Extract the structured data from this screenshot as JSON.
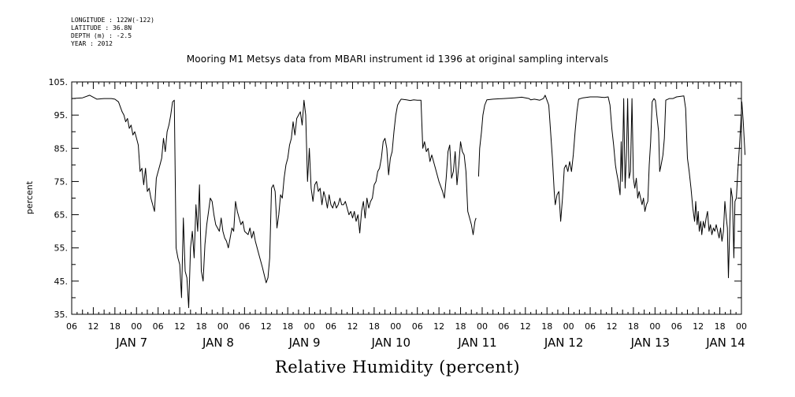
{
  "meta": {
    "longitude": "LONGITUDE : 122W(-122)",
    "latitude": "LATITUDE : 36.8N",
    "depth": "DEPTH (m) : -2.5",
    "year": "YEAR : 2012"
  },
  "chart_data": {
    "type": "line",
    "title": "Mooring M1 Metsys data from MBARI instrument id 1396 at original sampling intervals",
    "xlabel": "Relative Humidity (percent)",
    "ylabel": "percent",
    "xlim_hours": [
      0,
      186
    ],
    "ylim": [
      35,
      105
    ],
    "y_ticks": [
      "35.",
      "45.",
      "55.",
      "65.",
      "75.",
      "85.",
      "95.",
      "105."
    ],
    "x_tick_labels": [
      "06",
      "12",
      "18",
      "00",
      "06",
      "12",
      "18",
      "00",
      "06",
      "12",
      "18",
      "00",
      "06",
      "12",
      "18",
      "00",
      "06",
      "12",
      "18",
      "00",
      "06",
      "12",
      "18",
      "00",
      "06",
      "12",
      "18",
      "00",
      "06",
      "12",
      "18",
      "00"
    ],
    "day_labels": [
      "JAN  7",
      "JAN  8",
      "JAN  9",
      "JAN 10",
      "JAN 11",
      "JAN 12",
      "JAN 13",
      "JAN 14"
    ],
    "segments": [
      [
        [
          0,
          100
        ],
        [
          3,
          100.2
        ],
        [
          5,
          101
        ],
        [
          6,
          100.4
        ],
        [
          7,
          99.8
        ],
        [
          9,
          100
        ],
        [
          11,
          100
        ],
        [
          12,
          99.8
        ],
        [
          13,
          99
        ],
        [
          14,
          96
        ],
        [
          14.5,
          95
        ],
        [
          15,
          93
        ],
        [
          15.5,
          94
        ],
        [
          16,
          91
        ],
        [
          16.5,
          92
        ],
        [
          17,
          89
        ],
        [
          17.5,
          90
        ],
        [
          18,
          88
        ],
        [
          18.5,
          86
        ],
        [
          19,
          78
        ],
        [
          19.5,
          79
        ],
        [
          20,
          74
        ],
        [
          20.5,
          79
        ],
        [
          21,
          72
        ],
        [
          21.5,
          73
        ],
        [
          22,
          70
        ],
        [
          22.5,
          68
        ],
        [
          23,
          66
        ],
        [
          23.5,
          76
        ],
        [
          24,
          78
        ],
        [
          24.5,
          80
        ],
        [
          25,
          82
        ],
        [
          25.5,
          88
        ],
        [
          26,
          84
        ],
        [
          26.5,
          90
        ],
        [
          27,
          92
        ],
        [
          27.5,
          95
        ],
        [
          28,
          99
        ],
        [
          28.5,
          99.5
        ],
        [
          29,
          55
        ],
        [
          29.5,
          52
        ],
        [
          30,
          50
        ],
        [
          30.5,
          40
        ],
        [
          31,
          64
        ],
        [
          31.5,
          48
        ],
        [
          32,
          46
        ],
        [
          32.5,
          37
        ],
        [
          33,
          55
        ],
        [
          33.5,
          60
        ],
        [
          34,
          52
        ],
        [
          34.5,
          68
        ],
        [
          35,
          60
        ],
        [
          35.5,
          74
        ],
        [
          36,
          48
        ],
        [
          36.5,
          45
        ],
        [
          37,
          56
        ],
        [
          37.5,
          62
        ],
        [
          38,
          66
        ],
        [
          38.5,
          70
        ],
        [
          39,
          69
        ],
        [
          39.5,
          65
        ],
        [
          40,
          62
        ],
        [
          41,
          60
        ],
        [
          41.5,
          64
        ],
        [
          42,
          60
        ],
        [
          42.5,
          58
        ],
        [
          43,
          57
        ],
        [
          43.5,
          55
        ],
        [
          44,
          58
        ],
        [
          44.5,
          61
        ],
        [
          45,
          60
        ],
        [
          45.5,
          69
        ],
        [
          46,
          66
        ],
        [
          46.5,
          64
        ],
        [
          47,
          62
        ],
        [
          47.5,
          63
        ],
        [
          48,
          60
        ],
        [
          49,
          59
        ],
        [
          49.5,
          61
        ],
        [
          50,
          58
        ],
        [
          50.5,
          60
        ],
        [
          51,
          57
        ],
        [
          52,
          53
        ],
        [
          53,
          49
        ],
        [
          54,
          44.5
        ],
        [
          54.5,
          46
        ],
        [
          55,
          52
        ],
        [
          55.5,
          73
        ],
        [
          56,
          74
        ],
        [
          56.5,
          72
        ],
        [
          57,
          61
        ],
        [
          57.5,
          65
        ],
        [
          58,
          71
        ],
        [
          58.5,
          70
        ],
        [
          59,
          76
        ],
        [
          59.5,
          80
        ],
        [
          60,
          82
        ],
        [
          60.5,
          86
        ],
        [
          61,
          88
        ],
        [
          61.5,
          93
        ],
        [
          62,
          89
        ],
        [
          62.5,
          94
        ],
        [
          63,
          95
        ],
        [
          63.5,
          96
        ],
        [
          64,
          92
        ],
        [
          64.5,
          99.5
        ],
        [
          65,
          95
        ],
        [
          65.5,
          75
        ],
        [
          66,
          85
        ],
        [
          66.5,
          73
        ],
        [
          67,
          69
        ],
        [
          67.5,
          74
        ],
        [
          68,
          75
        ],
        [
          68.5,
          72
        ],
        [
          69,
          73
        ],
        [
          69.5,
          68
        ],
        [
          70,
          72
        ],
        [
          70.5,
          70
        ],
        [
          71,
          67
        ],
        [
          71.5,
          71
        ],
        [
          72,
          68
        ],
        [
          72.5,
          67
        ],
        [
          73,
          69
        ],
        [
          73.5,
          67
        ],
        [
          74,
          68
        ],
        [
          74.5,
          70
        ],
        [
          75,
          68
        ],
        [
          75.5,
          68
        ],
        [
          76,
          69
        ],
        [
          76.5,
          67
        ],
        [
          77,
          65
        ],
        [
          77.5,
          66
        ],
        [
          78,
          64
        ],
        [
          78.5,
          66
        ],
        [
          79,
          63
        ],
        [
          79.5,
          65
        ],
        [
          80,
          59.5
        ],
        [
          80.5,
          66
        ],
        [
          81,
          69
        ],
        [
          81.5,
          64
        ],
        [
          82,
          70
        ],
        [
          82.5,
          67
        ],
        [
          83,
          69
        ],
        [
          83.5,
          70
        ],
        [
          84,
          74
        ],
        [
          84.5,
          75
        ],
        [
          85,
          78
        ],
        [
          85.5,
          79
        ],
        [
          86,
          82
        ],
        [
          86.5,
          87
        ],
        [
          87,
          88
        ],
        [
          87.5,
          85
        ],
        [
          88,
          77
        ],
        [
          88.5,
          82
        ],
        [
          89,
          84
        ],
        [
          89.5,
          90
        ],
        [
          90,
          95
        ],
        [
          90.5,
          98
        ],
        [
          91,
          99
        ],
        [
          91.5,
          99.8
        ],
        [
          93,
          99.6
        ],
        [
          94,
          99.4
        ],
        [
          95,
          99.6
        ],
        [
          96,
          99.5
        ],
        [
          97,
          99.5
        ],
        [
          97.5,
          85
        ],
        [
          98,
          87
        ],
        [
          98.5,
          84
        ],
        [
          99,
          85
        ],
        [
          99.5,
          81
        ],
        [
          100,
          83
        ],
        [
          101,
          79
        ],
        [
          102,
          75
        ],
        [
          103,
          72
        ],
        [
          103.5,
          70
        ],
        [
          104,
          76
        ],
        [
          104.5,
          84
        ],
        [
          105,
          86
        ],
        [
          105.5,
          76
        ],
        [
          106,
          78
        ],
        [
          106.5,
          84
        ],
        [
          107,
          74
        ],
        [
          107.5,
          80
        ],
        [
          108,
          87
        ],
        [
          108.5,
          84
        ],
        [
          109,
          83
        ],
        [
          109.5,
          78
        ],
        [
          110,
          66
        ],
        [
          110.5,
          64
        ],
        [
          111,
          62
        ],
        [
          111.5,
          59
        ],
        [
          112,
          63
        ],
        [
          112.3,
          64
        ]
      ],
      [
        [
          113,
          76.5
        ],
        [
          113.3,
          85
        ],
        [
          113.8,
          90
        ],
        [
          114.2,
          95
        ],
        [
          114.7,
          98
        ],
        [
          115.3,
          99.6
        ],
        [
          117,
          99.8
        ],
        [
          120,
          100
        ],
        [
          123,
          100.2
        ],
        [
          125,
          100.4
        ],
        [
          127,
          100
        ],
        [
          127.5,
          99.6
        ],
        [
          128.5,
          99.8
        ],
        [
          130,
          99.5
        ],
        [
          131,
          100
        ],
        [
          131.5,
          101
        ],
        [
          132,
          99.5
        ],
        [
          132.5,
          98
        ],
        [
          133,
          90
        ],
        [
          133.5,
          82
        ],
        [
          134,
          72
        ],
        [
          134.3,
          68
        ],
        [
          134.8,
          71
        ],
        [
          135.3,
          72
        ],
        [
          135.8,
          63
        ],
        [
          136.3,
          70
        ],
        [
          136.8,
          79
        ],
        [
          137.3,
          80
        ],
        [
          137.8,
          78
        ],
        [
          138.3,
          81
        ],
        [
          138.8,
          78
        ],
        [
          139.3,
          83
        ],
        [
          139.8,
          90
        ],
        [
          140.3,
          96
        ],
        [
          140.8,
          99.8
        ],
        [
          142,
          100.2
        ],
        [
          144,
          100.5
        ],
        [
          146,
          100.5
        ],
        [
          148,
          100.3
        ],
        [
          149,
          100.5
        ],
        [
          149.5,
          98
        ],
        [
          150,
          91
        ],
        [
          150.5,
          86
        ],
        [
          151,
          80
        ],
        [
          151.3,
          78
        ],
        [
          151.8,
          75
        ],
        [
          152.3,
          71
        ],
        [
          152.6,
          87
        ],
        [
          152.9,
          75
        ],
        [
          153.3,
          100
        ],
        [
          153.7,
          73
        ],
        [
          154.1,
          84
        ],
        [
          154.4,
          100
        ],
        [
          154.8,
          76
        ],
        [
          155.2,
          78
        ],
        [
          155.6,
          100
        ],
        [
          156,
          76
        ],
        [
          156.4,
          73
        ],
        [
          156.8,
          76
        ],
        [
          157.2,
          70
        ],
        [
          157.6,
          72
        ],
        [
          158,
          70
        ],
        [
          158.4,
          68
        ],
        [
          158.8,
          70
        ],
        [
          159.2,
          66
        ],
        [
          159.6,
          68
        ],
        [
          160,
          69
        ],
        [
          160.4,
          80
        ],
        [
          160.8,
          87
        ],
        [
          161.2,
          99
        ],
        [
          161.7,
          100
        ],
        [
          162.1,
          99.4
        ],
        [
          162.5,
          95
        ],
        [
          163,
          90
        ],
        [
          163.3,
          78
        ],
        [
          163.7,
          80
        ],
        [
          164.2,
          83
        ],
        [
          164.6,
          88
        ],
        [
          165,
          99.5
        ],
        [
          166,
          100
        ],
        [
          167,
          100
        ],
        [
          168,
          100.5
        ],
        [
          170,
          100.8
        ],
        [
          170.5,
          97
        ],
        [
          171,
          82
        ],
        [
          171.5,
          78
        ],
        [
          172,
          73
        ],
        [
          172.5,
          67
        ],
        [
          173,
          63
        ],
        [
          173.3,
          69
        ],
        [
          173.7,
          62
        ],
        [
          174,
          66
        ],
        [
          174.3,
          60
        ],
        [
          174.7,
          63
        ],
        [
          175,
          59
        ],
        [
          175.4,
          63
        ],
        [
          175.8,
          61
        ],
        [
          176.2,
          64
        ],
        [
          176.6,
          66
        ],
        [
          177,
          60
        ],
        [
          177.4,
          62
        ],
        [
          177.8,
          59
        ],
        [
          178.2,
          61
        ],
        [
          178.6,
          60
        ],
        [
          179,
          62
        ],
        [
          179.4,
          60
        ],
        [
          179.8,
          58
        ],
        [
          180.2,
          61
        ],
        [
          180.6,
          57
        ],
        [
          181,
          60
        ],
        [
          181.4,
          69
        ],
        [
          181.8,
          64
        ],
        [
          182.1,
          61
        ],
        [
          182.4,
          46
        ],
        [
          182.8,
          63
        ],
        [
          183.1,
          73
        ],
        [
          183.5,
          70
        ],
        [
          183.9,
          52
        ],
        [
          184.2,
          69
        ],
        [
          184.6,
          70
        ],
        [
          185,
          78
        ],
        [
          185.4,
          85
        ],
        [
          185.8,
          92
        ],
        [
          186.1,
          99
        ],
        [
          186.5,
          93
        ],
        [
          187,
          83
        ]
      ]
    ]
  }
}
